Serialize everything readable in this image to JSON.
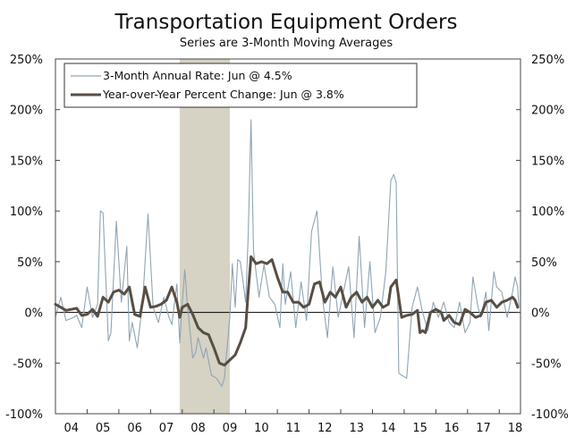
{
  "chart_data": {
    "type": "line",
    "title": "Transportation Equipment Orders",
    "subtitle": "Series are 3-Month Moving Averages",
    "xlabel": "",
    "ylabel": "",
    "ylim": [
      -100,
      250
    ],
    "y_ticks": [
      250,
      200,
      150,
      100,
      50,
      0,
      -50,
      -100
    ],
    "y_tick_labels": [
      "250%",
      "200%",
      "150%",
      "100%",
      "50%",
      "0%",
      "-50%",
      "-100%"
    ],
    "xlim": [
      2004.0,
      2018.67
    ],
    "x_ticks": [
      2004,
      2005,
      2006,
      2007,
      2008,
      2009,
      2010,
      2011,
      2012,
      2013,
      2014,
      2015,
      2016,
      2017,
      2018
    ],
    "x_tick_labels": [
      "04",
      "05",
      "06",
      "07",
      "08",
      "09",
      "10",
      "11",
      "12",
      "13",
      "14",
      "15",
      "16",
      "17",
      "18"
    ],
    "recession": {
      "start": 2007.92,
      "end": 2009.5,
      "color": "#d6d2c4"
    },
    "legend": {
      "position": "top-left"
    },
    "series": [
      {
        "name": "3-Month Annual Rate: Jun @ 4.5%",
        "color": "#8fa5b5",
        "width": "thin",
        "points": [
          [
            2004.0,
            -5
          ],
          [
            2004.17,
            15
          ],
          [
            2004.33,
            -8
          ],
          [
            2004.5,
            -6
          ],
          [
            2004.67,
            -3
          ],
          [
            2004.83,
            -15
          ],
          [
            2005.0,
            25
          ],
          [
            2005.17,
            -5
          ],
          [
            2005.33,
            8
          ],
          [
            2005.42,
            100
          ],
          [
            2005.5,
            98
          ],
          [
            2005.67,
            -28
          ],
          [
            2005.75,
            -20
          ],
          [
            2005.92,
            90
          ],
          [
            2006.08,
            10
          ],
          [
            2006.25,
            65
          ],
          [
            2006.33,
            -28
          ],
          [
            2006.42,
            -10
          ],
          [
            2006.58,
            -35
          ],
          [
            2006.75,
            10
          ],
          [
            2006.92,
            97
          ],
          [
            2007.08,
            5
          ],
          [
            2007.25,
            -10
          ],
          [
            2007.42,
            15
          ],
          [
            2007.58,
            -5
          ],
          [
            2007.67,
            -12
          ],
          [
            2007.83,
            28
          ],
          [
            2007.92,
            -30
          ],
          [
            2008.0,
            10
          ],
          [
            2008.08,
            42
          ],
          [
            2008.17,
            5
          ],
          [
            2008.33,
            -45
          ],
          [
            2008.42,
            -40
          ],
          [
            2008.5,
            -25
          ],
          [
            2008.67,
            -45
          ],
          [
            2008.75,
            -35
          ],
          [
            2008.92,
            -62
          ],
          [
            2009.08,
            -65
          ],
          [
            2009.25,
            -73
          ],
          [
            2009.33,
            -65
          ],
          [
            2009.5,
            -5
          ],
          [
            2009.58,
            48
          ],
          [
            2009.67,
            5
          ],
          [
            2009.75,
            52
          ],
          [
            2009.83,
            50
          ],
          [
            2009.92,
            30
          ],
          [
            2010.0,
            10
          ],
          [
            2010.08,
            75
          ],
          [
            2010.17,
            190
          ],
          [
            2010.25,
            60
          ],
          [
            2010.42,
            15
          ],
          [
            2010.58,
            47
          ],
          [
            2010.75,
            15
          ],
          [
            2010.92,
            8
          ],
          [
            2011.08,
            -15
          ],
          [
            2011.17,
            48
          ],
          [
            2011.25,
            8
          ],
          [
            2011.42,
            40
          ],
          [
            2011.58,
            -15
          ],
          [
            2011.75,
            30
          ],
          [
            2011.92,
            -8
          ],
          [
            2012.08,
            80
          ],
          [
            2012.25,
            100
          ],
          [
            2012.42,
            15
          ],
          [
            2012.58,
            -25
          ],
          [
            2012.75,
            45
          ],
          [
            2012.92,
            -5
          ],
          [
            2013.08,
            20
          ],
          [
            2013.25,
            45
          ],
          [
            2013.42,
            -25
          ],
          [
            2013.58,
            75
          ],
          [
            2013.75,
            -15
          ],
          [
            2013.92,
            50
          ],
          [
            2014.08,
            -20
          ],
          [
            2014.25,
            -5
          ],
          [
            2014.42,
            40
          ],
          [
            2014.58,
            130
          ],
          [
            2014.67,
            136
          ],
          [
            2014.75,
            128
          ],
          [
            2014.83,
            -60
          ],
          [
            2014.92,
            -62
          ],
          [
            2015.08,
            -65
          ],
          [
            2015.25,
            5
          ],
          [
            2015.42,
            25
          ],
          [
            2015.58,
            0
          ],
          [
            2015.75,
            -18
          ],
          [
            2015.92,
            10
          ],
          [
            2016.08,
            -5
          ],
          [
            2016.25,
            10
          ],
          [
            2016.42,
            -10
          ],
          [
            2016.58,
            -15
          ],
          [
            2016.75,
            10
          ],
          [
            2016.92,
            -20
          ],
          [
            2017.08,
            -10
          ],
          [
            2017.17,
            35
          ],
          [
            2017.33,
            5
          ],
          [
            2017.42,
            -5
          ],
          [
            2017.58,
            20
          ],
          [
            2017.67,
            -18
          ],
          [
            2017.83,
            40
          ],
          [
            2017.92,
            25
          ],
          [
            2018.08,
            20
          ],
          [
            2018.25,
            -5
          ],
          [
            2018.42,
            20
          ],
          [
            2018.5,
            35
          ],
          [
            2018.58,
            25
          ],
          [
            2018.62,
            5
          ]
        ]
      },
      {
        "name": "Year-over-Year Percent Change: Jun @ 3.8%",
        "color": "#574e44",
        "width": "thick",
        "points": [
          [
            2004.0,
            8
          ],
          [
            2004.17,
            5
          ],
          [
            2004.33,
            2
          ],
          [
            2004.5,
            3
          ],
          [
            2004.67,
            4
          ],
          [
            2004.83,
            -3
          ],
          [
            2005.0,
            -2
          ],
          [
            2005.17,
            3
          ],
          [
            2005.33,
            -4
          ],
          [
            2005.5,
            15
          ],
          [
            2005.67,
            10
          ],
          [
            2005.83,
            20
          ],
          [
            2006.0,
            22
          ],
          [
            2006.17,
            18
          ],
          [
            2006.33,
            25
          ],
          [
            2006.5,
            -2
          ],
          [
            2006.67,
            -4
          ],
          [
            2006.83,
            25
          ],
          [
            2007.0,
            5
          ],
          [
            2007.17,
            6
          ],
          [
            2007.33,
            8
          ],
          [
            2007.5,
            12
          ],
          [
            2007.67,
            25
          ],
          [
            2007.83,
            10
          ],
          [
            2007.92,
            -5
          ],
          [
            2008.0,
            5
          ],
          [
            2008.17,
            8
          ],
          [
            2008.33,
            -2
          ],
          [
            2008.5,
            -15
          ],
          [
            2008.67,
            -20
          ],
          [
            2008.83,
            -22
          ],
          [
            2009.0,
            -35
          ],
          [
            2009.17,
            -50
          ],
          [
            2009.33,
            -52
          ],
          [
            2009.5,
            -47
          ],
          [
            2009.67,
            -42
          ],
          [
            2009.83,
            -30
          ],
          [
            2010.0,
            -15
          ],
          [
            2010.08,
            20
          ],
          [
            2010.17,
            55
          ],
          [
            2010.33,
            48
          ],
          [
            2010.5,
            50
          ],
          [
            2010.67,
            48
          ],
          [
            2010.83,
            52
          ],
          [
            2011.0,
            35
          ],
          [
            2011.17,
            20
          ],
          [
            2011.33,
            20
          ],
          [
            2011.5,
            10
          ],
          [
            2011.67,
            10
          ],
          [
            2011.83,
            5
          ],
          [
            2012.0,
            8
          ],
          [
            2012.17,
            28
          ],
          [
            2012.33,
            30
          ],
          [
            2012.5,
            10
          ],
          [
            2012.67,
            20
          ],
          [
            2012.83,
            15
          ],
          [
            2013.0,
            25
          ],
          [
            2013.17,
            5
          ],
          [
            2013.33,
            15
          ],
          [
            2013.5,
            20
          ],
          [
            2013.67,
            10
          ],
          [
            2013.83,
            15
          ],
          [
            2014.0,
            5
          ],
          [
            2014.17,
            12
          ],
          [
            2014.33,
            5
          ],
          [
            2014.5,
            8
          ],
          [
            2014.58,
            25
          ],
          [
            2014.75,
            32
          ],
          [
            2014.92,
            -5
          ],
          [
            2015.08,
            -3
          ],
          [
            2015.25,
            -2
          ],
          [
            2015.42,
            2
          ],
          [
            2015.5,
            -20
          ],
          [
            2015.58,
            -18
          ],
          [
            2015.67,
            -20
          ],
          [
            2015.83,
            0
          ],
          [
            2016.0,
            3
          ],
          [
            2016.17,
            0
          ],
          [
            2016.25,
            -8
          ],
          [
            2016.42,
            -3
          ],
          [
            2016.58,
            -10
          ],
          [
            2016.75,
            -12
          ],
          [
            2016.92,
            3
          ],
          [
            2017.08,
            0
          ],
          [
            2017.25,
            -5
          ],
          [
            2017.42,
            -3
          ],
          [
            2017.58,
            10
          ],
          [
            2017.75,
            12
          ],
          [
            2017.92,
            5
          ],
          [
            2018.08,
            10
          ],
          [
            2018.25,
            12
          ],
          [
            2018.42,
            15
          ],
          [
            2018.5,
            12
          ],
          [
            2018.58,
            5
          ]
        ]
      }
    ]
  }
}
